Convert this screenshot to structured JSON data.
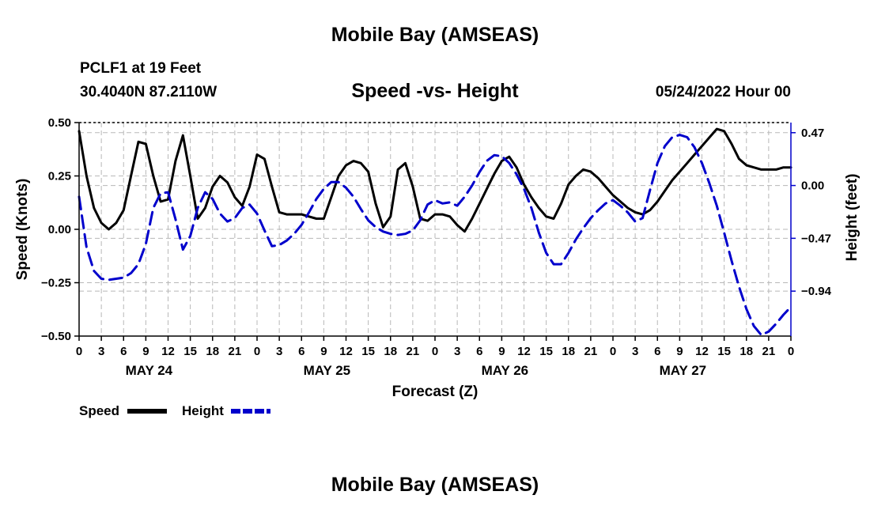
{
  "header": {
    "title": "Mobile Bay (AMSEAS)",
    "station": "PCLF1 at 19 Feet",
    "location": "30.4040N  87.2110W",
    "subtitle": "Speed -vs- Height",
    "datetime": "05/24/2022 Hour 00"
  },
  "footer": {
    "title": "Mobile Bay (AMSEAS)"
  },
  "chart_data": {
    "type": "line",
    "title": "Speed -vs- Height",
    "xlabel": "Forecast (Z)",
    "ylabel_left": "Speed (Knots)",
    "ylabel_right": "Height (feet)",
    "x_range_hours": [
      0,
      96
    ],
    "ylim_left": [
      -0.5,
      0.5
    ],
    "ylim_right": [
      -1.34,
      0.56
    ],
    "left_ticks": [
      {
        "value": 0.5,
        "label": "0.50"
      },
      {
        "value": 0.25,
        "label": "0.25"
      },
      {
        "value": 0.0,
        "label": "0.00"
      },
      {
        "value": -0.25,
        "label": "−0.25"
      },
      {
        "value": -0.5,
        "label": "−0.50"
      }
    ],
    "right_ticks": [
      {
        "value": 0.47,
        "label": "0.47"
      },
      {
        "value": 0.0,
        "label": "0.00"
      },
      {
        "value": -0.47,
        "label": "−0.47"
      },
      {
        "value": -0.94,
        "label": "−0.94"
      }
    ],
    "x_tick_labels": [
      "0",
      "3",
      "6",
      "9",
      "12",
      "15",
      "18",
      "21",
      "0",
      "3",
      "6",
      "9",
      "12",
      "15",
      "18",
      "21",
      "0",
      "3",
      "6",
      "9",
      "12",
      "15",
      "18",
      "21",
      "0",
      "3",
      "6",
      "9",
      "12",
      "15",
      "18",
      "21",
      "0"
    ],
    "day_labels": [
      {
        "hour": 9,
        "label": "MAY 24"
      },
      {
        "hour": 33,
        "label": "MAY 25"
      },
      {
        "hour": 57,
        "label": "MAY 26"
      },
      {
        "hour": 81,
        "label": "MAY 27"
      }
    ],
    "grid": true,
    "legend": [
      {
        "name": "Speed",
        "color": "#000000",
        "dash": "solid"
      },
      {
        "name": "Height",
        "color": "#0000cc",
        "dash": "dashed"
      }
    ],
    "series": [
      {
        "name": "Speed",
        "axis": "left",
        "color": "#000000",
        "x": [
          0,
          1,
          2,
          3,
          4,
          5,
          6,
          7,
          8,
          9,
          10,
          11,
          12,
          13,
          14,
          15,
          16,
          17,
          18,
          19,
          20,
          21,
          22,
          23,
          24,
          25,
          26,
          27,
          28,
          29,
          30,
          31,
          32,
          33,
          34,
          35,
          36,
          37,
          38,
          39,
          40,
          41,
          42,
          43,
          44,
          45,
          46,
          47,
          48,
          49,
          50,
          51,
          52,
          53,
          54,
          55,
          56,
          57,
          58,
          59,
          60,
          61,
          62,
          63,
          64,
          65,
          66,
          67,
          68,
          69,
          70,
          71,
          72,
          73,
          74,
          75,
          76,
          77,
          78,
          79,
          80,
          81,
          82,
          83,
          84,
          85,
          86,
          87,
          88,
          89,
          90,
          91,
          92,
          93,
          94,
          95,
          96
        ],
        "y": [
          0.46,
          0.25,
          0.1,
          0.03,
          0.0,
          0.03,
          0.09,
          0.25,
          0.41,
          0.4,
          0.25,
          0.13,
          0.14,
          0.32,
          0.44,
          0.25,
          0.05,
          0.1,
          0.2,
          0.25,
          0.22,
          0.15,
          0.11,
          0.2,
          0.35,
          0.33,
          0.2,
          0.08,
          0.07,
          0.07,
          0.07,
          0.06,
          0.05,
          0.05,
          0.15,
          0.25,
          0.3,
          0.32,
          0.31,
          0.27,
          0.12,
          0.01,
          0.06,
          0.28,
          0.31,
          0.2,
          0.05,
          0.04,
          0.07,
          0.07,
          0.06,
          0.02,
          -0.01,
          0.05,
          0.12,
          0.19,
          0.26,
          0.32,
          0.34,
          0.29,
          0.21,
          0.15,
          0.1,
          0.06,
          0.05,
          0.12,
          0.21,
          0.25,
          0.28,
          0.27,
          0.24,
          0.2,
          0.16,
          0.13,
          0.1,
          0.08,
          0.07,
          0.09,
          0.13,
          0.18,
          0.23,
          0.27,
          0.31,
          0.35,
          0.39,
          0.43,
          0.47,
          0.46,
          0.4,
          0.33,
          0.3,
          0.29,
          0.28,
          0.28,
          0.28,
          0.29,
          0.29
        ]
      },
      {
        "name": "Height",
        "axis": "right",
        "color": "#0000cc",
        "x": [
          0,
          1,
          2,
          3,
          4,
          5,
          6,
          7,
          8,
          9,
          10,
          11,
          12,
          13,
          14,
          15,
          16,
          17,
          18,
          19,
          20,
          21,
          22,
          23,
          24,
          25,
          26,
          27,
          28,
          29,
          30,
          31,
          32,
          33,
          34,
          35,
          36,
          37,
          38,
          39,
          40,
          41,
          42,
          43,
          44,
          45,
          46,
          47,
          48,
          49,
          50,
          51,
          52,
          53,
          54,
          55,
          56,
          57,
          58,
          59,
          60,
          61,
          62,
          63,
          64,
          65,
          66,
          67,
          68,
          69,
          70,
          71,
          72,
          73,
          74,
          75,
          76,
          77,
          78,
          79,
          80,
          81,
          82,
          83,
          84,
          85,
          86,
          87,
          88,
          89,
          90,
          91,
          92,
          93,
          94,
          95,
          96
        ],
        "y": [
          -0.1,
          -0.55,
          -0.76,
          -0.83,
          -0.84,
          -0.83,
          -0.82,
          -0.78,
          -0.7,
          -0.52,
          -0.2,
          -0.07,
          -0.06,
          -0.3,
          -0.57,
          -0.45,
          -0.2,
          -0.06,
          -0.12,
          -0.25,
          -0.32,
          -0.29,
          -0.2,
          -0.17,
          -0.25,
          -0.4,
          -0.54,
          -0.53,
          -0.49,
          -0.43,
          -0.35,
          -0.24,
          -0.12,
          -0.03,
          0.03,
          0.03,
          -0.02,
          -0.1,
          -0.21,
          -0.31,
          -0.37,
          -0.41,
          -0.43,
          -0.44,
          -0.43,
          -0.4,
          -0.31,
          -0.17,
          -0.13,
          -0.16,
          -0.15,
          -0.18,
          -0.1,
          0.0,
          0.12,
          0.22,
          0.27,
          0.26,
          0.2,
          0.1,
          -0.03,
          -0.2,
          -0.42,
          -0.6,
          -0.7,
          -0.7,
          -0.6,
          -0.48,
          -0.38,
          -0.29,
          -0.22,
          -0.16,
          -0.13,
          -0.18,
          -0.24,
          -0.32,
          -0.29,
          -0.04,
          0.2,
          0.35,
          0.43,
          0.45,
          0.43,
          0.34,
          0.2,
          0.02,
          -0.18,
          -0.42,
          -0.67,
          -0.9,
          -1.1,
          -1.25,
          -1.33,
          -1.3,
          -1.23,
          -1.15,
          -1.08
        ]
      }
    ]
  }
}
